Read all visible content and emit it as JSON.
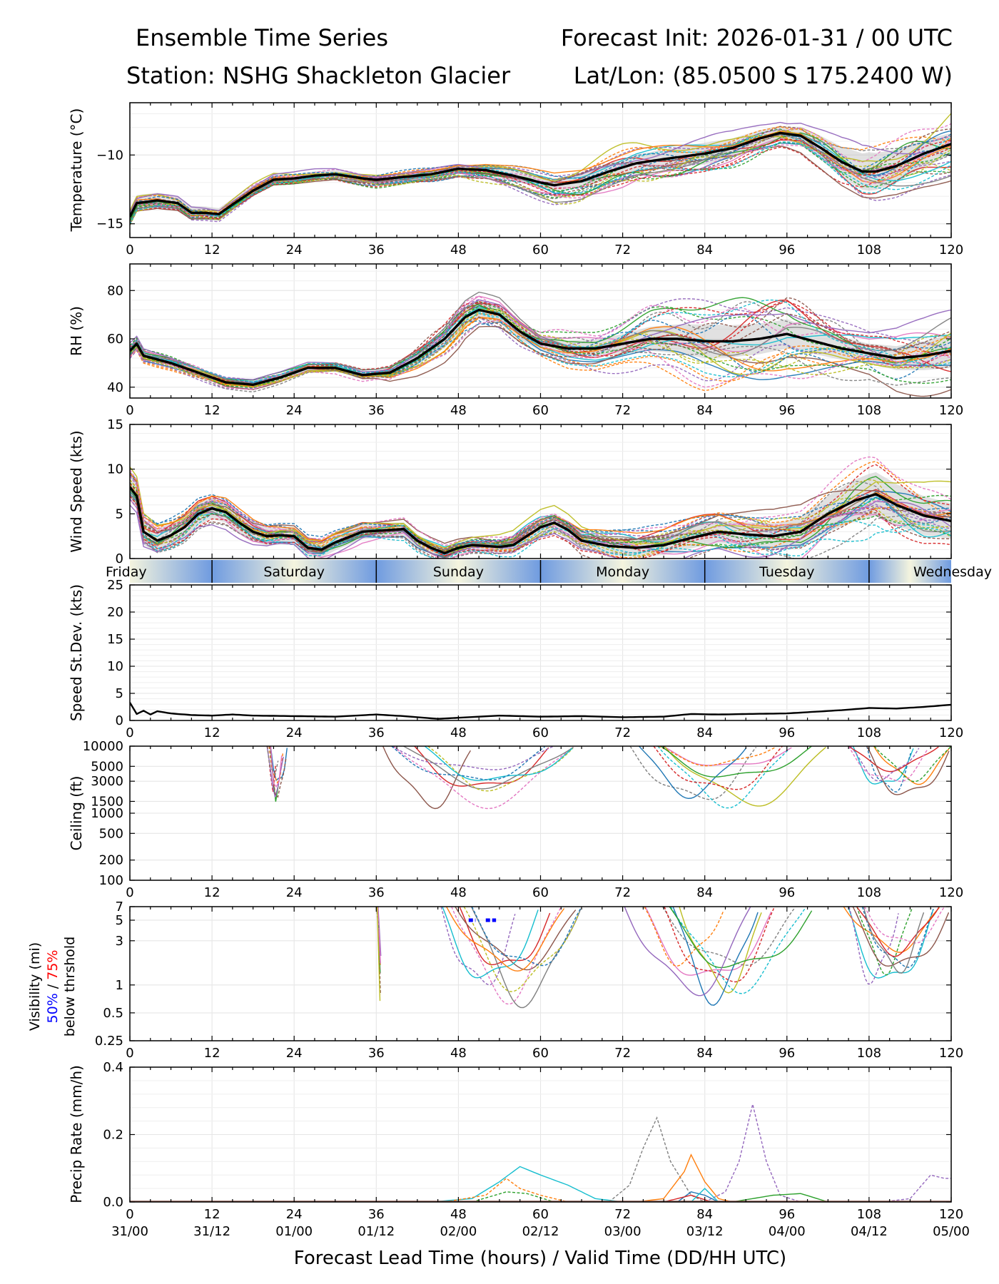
{
  "header": {
    "title_left": "Ensemble Time Series",
    "title_right": "Forecast Init: 2026-01-31 / 00 UTC",
    "station": "Station: NSHG Shackleton Glacier",
    "latlon": "Lat/Lon: (85.0500 S 175.2400 W)"
  },
  "colors": {
    "members": [
      "#1f77b4",
      "#ff7f0e",
      "#2ca02c",
      "#d62728",
      "#9467bd",
      "#8c564b",
      "#e377c2",
      "#7f7f7f",
      "#bcbd22",
      "#17becf"
    ],
    "mean": "#000000",
    "spread": "#c8c8c8",
    "day_blue": "#6f9be0",
    "day_cream": "#f4f4de",
    "vis50": "#0000ff",
    "vis75": "#ff0000"
  },
  "chart_data": [
    {
      "type": "line",
      "id": "temp",
      "ylabel": "Temperature (°C)",
      "ylim": [
        -16,
        -6.2
      ],
      "yticks": [
        -15,
        -10
      ],
      "xlim": [
        0,
        120
      ],
      "mean": [
        [
          0,
          -14.5
        ],
        [
          1,
          -13.5
        ],
        [
          4,
          -13.3
        ],
        [
          7,
          -13.5
        ],
        [
          9,
          -14.2
        ],
        [
          11,
          -14.2
        ],
        [
          13,
          -14.3
        ],
        [
          15,
          -13.6
        ],
        [
          18,
          -12.6
        ],
        [
          21,
          -11.8
        ],
        [
          24,
          -11.7
        ],
        [
          27,
          -11.5
        ],
        [
          30,
          -11.4
        ],
        [
          34,
          -11.7
        ],
        [
          36,
          -11.8
        ],
        [
          40,
          -11.6
        ],
        [
          44,
          -11.4
        ],
        [
          48,
          -11.0
        ],
        [
          52,
          -11.1
        ],
        [
          56,
          -11.5
        ],
        [
          60,
          -12.0
        ],
        [
          62,
          -12.2
        ],
        [
          66,
          -11.9
        ],
        [
          70,
          -11.2
        ],
        [
          74,
          -10.6
        ],
        [
          78,
          -10.3
        ],
        [
          84,
          -9.9
        ],
        [
          88,
          -9.5
        ],
        [
          92,
          -8.8
        ],
        [
          95,
          -8.4
        ],
        [
          98,
          -8.6
        ],
        [
          101,
          -9.5
        ],
        [
          104,
          -10.5
        ],
        [
          107,
          -11.2
        ],
        [
          109,
          -11.2
        ],
        [
          112,
          -10.8
        ],
        [
          116,
          -9.9
        ],
        [
          120,
          -9.2
        ]
      ],
      "spread_half": [
        [
          0,
          0.6
        ],
        [
          24,
          0.3
        ],
        [
          48,
          0.3
        ],
        [
          60,
          0.4
        ],
        [
          72,
          0.6
        ],
        [
          84,
          0.8
        ],
        [
          96,
          0.5
        ],
        [
          108,
          1.4
        ],
        [
          120,
          0.8
        ]
      ],
      "amp": [
        [
          0,
          0.6
        ],
        [
          12,
          0.5
        ],
        [
          24,
          0.4
        ],
        [
          48,
          0.5
        ],
        [
          72,
          1.2
        ],
        [
          96,
          0.8
        ],
        [
          108,
          1.6
        ],
        [
          120,
          1.8
        ]
      ],
      "n_members": 30
    },
    {
      "type": "line",
      "id": "rh",
      "ylabel": "RH (%)",
      "ylim": [
        35.5,
        91
      ],
      "yticks": [
        40,
        60,
        80
      ],
      "xlim": [
        0,
        120
      ],
      "mean": [
        [
          0,
          55
        ],
        [
          1,
          58
        ],
        [
          2,
          53
        ],
        [
          6,
          50
        ],
        [
          10,
          46
        ],
        [
          14,
          42
        ],
        [
          18,
          41
        ],
        [
          22,
          44
        ],
        [
          26,
          48
        ],
        [
          30,
          48
        ],
        [
          34,
          45
        ],
        [
          38,
          46
        ],
        [
          42,
          52
        ],
        [
          46,
          60
        ],
        [
          49,
          69
        ],
        [
          51,
          72
        ],
        [
          54,
          70
        ],
        [
          57,
          63
        ],
        [
          60,
          58
        ],
        [
          64,
          56
        ],
        [
          68,
          56
        ],
        [
          72,
          58
        ],
        [
          76,
          60
        ],
        [
          80,
          60
        ],
        [
          84,
          59
        ],
        [
          88,
          59
        ],
        [
          92,
          60
        ],
        [
          96,
          62
        ],
        [
          100,
          59
        ],
        [
          104,
          56
        ],
        [
          108,
          54
        ],
        [
          112,
          52
        ],
        [
          116,
          53
        ],
        [
          120,
          55
        ]
      ],
      "spread_half": [
        [
          0,
          2
        ],
        [
          24,
          1.5
        ],
        [
          36,
          1.5
        ],
        [
          48,
          4
        ],
        [
          60,
          3
        ],
        [
          72,
          4
        ],
        [
          84,
          7
        ],
        [
          96,
          6
        ],
        [
          108,
          4
        ],
        [
          120,
          7
        ]
      ],
      "amp": [
        [
          0,
          3
        ],
        [
          24,
          2
        ],
        [
          36,
          2
        ],
        [
          48,
          8
        ],
        [
          60,
          5
        ],
        [
          72,
          8
        ],
        [
          84,
          13
        ],
        [
          96,
          13
        ],
        [
          108,
          7
        ],
        [
          120,
          10
        ]
      ],
      "n_members": 30
    },
    {
      "type": "line",
      "id": "wind",
      "ylabel": "Wind Speed (kts)",
      "ylim": [
        0,
        15
      ],
      "yticks": [
        0,
        5,
        10,
        15
      ],
      "xlim": [
        0,
        120
      ],
      "mean": [
        [
          0,
          8
        ],
        [
          1,
          7
        ],
        [
          2,
          3
        ],
        [
          4,
          2
        ],
        [
          6,
          2.6
        ],
        [
          8,
          3.5
        ],
        [
          10,
          5
        ],
        [
          12,
          5.6
        ],
        [
          14,
          5.2
        ],
        [
          16,
          4
        ],
        [
          18,
          3
        ],
        [
          20,
          2.5
        ],
        [
          22,
          2.6
        ],
        [
          24,
          2.5
        ],
        [
          26,
          1.2
        ],
        [
          28,
          1
        ],
        [
          30,
          1.8
        ],
        [
          34,
          3
        ],
        [
          38,
          3.2
        ],
        [
          40,
          3.3
        ],
        [
          42,
          2
        ],
        [
          44,
          1.2
        ],
        [
          46,
          0.6
        ],
        [
          48,
          1.2
        ],
        [
          50,
          1.5
        ],
        [
          54,
          1.3
        ],
        [
          56,
          1.5
        ],
        [
          58,
          2.5
        ],
        [
          60,
          3.5
        ],
        [
          62,
          4
        ],
        [
          64,
          3.2
        ],
        [
          66,
          2
        ],
        [
          70,
          1.4
        ],
        [
          74,
          1.2
        ],
        [
          78,
          1.5
        ],
        [
          82,
          2.3
        ],
        [
          86,
          3
        ],
        [
          90,
          2.7
        ],
        [
          94,
          2.5
        ],
        [
          98,
          3
        ],
        [
          102,
          5
        ],
        [
          106,
          6.5
        ],
        [
          109,
          7.2
        ],
        [
          112,
          6
        ],
        [
          116,
          4.8
        ],
        [
          120,
          4.2
        ]
      ],
      "spread_half": [
        [
          0,
          1.5
        ],
        [
          12,
          1.2
        ],
        [
          24,
          1
        ],
        [
          48,
          0.6
        ],
        [
          60,
          1
        ],
        [
          72,
          1
        ],
        [
          84,
          1.2
        ],
        [
          96,
          1.5
        ],
        [
          108,
          2.5
        ],
        [
          120,
          2
        ]
      ],
      "amp": [
        [
          0,
          2
        ],
        [
          12,
          1.6
        ],
        [
          24,
          1.3
        ],
        [
          48,
          0.9
        ],
        [
          60,
          1.3
        ],
        [
          72,
          1.4
        ],
        [
          84,
          1.8
        ],
        [
          96,
          2
        ],
        [
          108,
          3
        ],
        [
          120,
          2.5
        ]
      ],
      "n_members": 30
    },
    {
      "type": "line",
      "id": "sd",
      "ylabel": "Speed St.Dev. (kts)",
      "ylim": [
        0,
        25
      ],
      "yticks": [
        0,
        5,
        10,
        15,
        20,
        25
      ],
      "xlim": [
        0,
        120
      ],
      "mean": [
        [
          0,
          3.3
        ],
        [
          1,
          1.2
        ],
        [
          2,
          1.8
        ],
        [
          3,
          1.1
        ],
        [
          4,
          1.7
        ],
        [
          6,
          1.3
        ],
        [
          9,
          1.0
        ],
        [
          12,
          0.9
        ],
        [
          15,
          1.1
        ],
        [
          18,
          0.9
        ],
        [
          24,
          0.8
        ],
        [
          30,
          0.7
        ],
        [
          36,
          1.1
        ],
        [
          40,
          0.8
        ],
        [
          45,
          0.3
        ],
        [
          48,
          0.5
        ],
        [
          54,
          0.9
        ],
        [
          60,
          0.7
        ],
        [
          66,
          0.8
        ],
        [
          72,
          0.6
        ],
        [
          78,
          0.7
        ],
        [
          82,
          1.2
        ],
        [
          86,
          1.1
        ],
        [
          90,
          1.2
        ],
        [
          96,
          1.3
        ],
        [
          100,
          1.6
        ],
        [
          104,
          1.9
        ],
        [
          108,
          2.3
        ],
        [
          112,
          2.2
        ],
        [
          116,
          2.5
        ],
        [
          120,
          2.9
        ]
      ]
    },
    {
      "type": "line",
      "id": "ceil",
      "ylabel": "Ceiling (ft)",
      "yscale": "log",
      "ylim": [
        100,
        10000
      ],
      "xlim": [
        0,
        120
      ],
      "ytick_labels": [
        "100",
        "200",
        "500",
        "1000",
        "1500",
        "3000",
        "5000",
        "10000"
      ],
      "yticks": [
        100,
        200,
        500,
        1000,
        1500,
        3000,
        5000,
        10000
      ],
      "member_windows": [
        [
          20,
          23
        ],
        [
          36,
          65
        ],
        [
          70,
          102
        ],
        [
          104,
          120
        ]
      ]
    },
    {
      "type": "line",
      "id": "vis",
      "ylabel": "Visibility (mi)",
      "yscale": "log",
      "ylim": [
        0.25,
        7
      ],
      "xlim": [
        0,
        120
      ],
      "ytick_labels": [
        "0.25",
        "0.5",
        "1",
        "3",
        "5",
        "7"
      ],
      "yticks": [
        0.25,
        0.5,
        1,
        3,
        5,
        7
      ],
      "label_50": "50%",
      "label_sep": " / ",
      "label_75": "75%",
      "label_below": "below thrshold",
      "thresh50_segments": [
        [
          49.5,
          50.5
        ],
        [
          52,
          53.5
        ]
      ],
      "member_windows": [
        [
          36,
          37
        ],
        [
          44,
          66
        ],
        [
          72,
          100
        ],
        [
          102,
          120
        ]
      ]
    },
    {
      "type": "line",
      "id": "precip",
      "ylabel": "Precip Rate (mm/h)",
      "ylim": [
        0,
        0.4
      ],
      "yticks": [
        0.0,
        0.2,
        0.4
      ],
      "ytick_labels": [
        "0.0",
        "0.2",
        "0.4"
      ],
      "xlim": [
        0,
        120
      ],
      "peaks": [
        {
          "c": 9,
          "dash": false,
          "pts": [
            [
              44,
              0
            ],
            [
              50,
              0.01
            ],
            [
              54,
              0.06
            ],
            [
              57,
              0.105
            ],
            [
              60,
              0.08
            ],
            [
              64,
              0.05
            ],
            [
              68,
              0.01
            ],
            [
              72,
              0
            ]
          ]
        },
        {
          "c": 1,
          "dash": true,
          "pts": [
            [
              46,
              0
            ],
            [
              52,
              0.02
            ],
            [
              55,
              0.07
            ],
            [
              57,
              0.04
            ],
            [
              60,
              0.02
            ],
            [
              64,
              0
            ]
          ]
        },
        {
          "c": 7,
          "dash": true,
          "pts": [
            [
              70,
              0
            ],
            [
              73,
              0.05
            ],
            [
              75,
              0.16
            ],
            [
              77,
              0.25
            ],
            [
              79,
              0.12
            ],
            [
              82,
              0.02
            ],
            [
              84,
              0
            ]
          ]
        },
        {
          "c": 1,
          "dash": false,
          "pts": [
            [
              74,
              0
            ],
            [
              78,
              0.01
            ],
            [
              81,
              0.09
            ],
            [
              82,
              0.14
            ],
            [
              84,
              0.06
            ],
            [
              86,
              0.01
            ],
            [
              88,
              0
            ]
          ]
        },
        {
          "c": 4,
          "dash": true,
          "pts": [
            [
              84,
              0
            ],
            [
              87,
              0.03
            ],
            [
              89,
              0.12
            ],
            [
              91,
              0.29
            ],
            [
              93,
              0.12
            ],
            [
              95,
              0.02
            ],
            [
              98,
              0
            ]
          ]
        },
        {
          "c": 4,
          "dash": true,
          "pts": [
            [
              110,
              0
            ],
            [
              114,
              0.01
            ],
            [
              117,
              0.08
            ],
            [
              119,
              0.07
            ],
            [
              120,
              0.07
            ]
          ]
        },
        {
          "c": 0,
          "dash": false,
          "pts": [
            [
              80,
              0
            ],
            [
              82,
              0.03
            ],
            [
              84,
              0.02
            ],
            [
              86,
              0
            ]
          ]
        },
        {
          "c": 2,
          "dash": false,
          "pts": [
            [
              88,
              0
            ],
            [
              94,
              0.02
            ],
            [
              98,
              0.025
            ],
            [
              102,
              0
            ]
          ]
        },
        {
          "c": 3,
          "dash": false,
          "pts": [
            [
              78,
              0
            ],
            [
              82,
              0.02
            ],
            [
              85,
              0
            ]
          ]
        },
        {
          "c": 2,
          "dash": true,
          "pts": [
            [
              50,
              0
            ],
            [
              55,
              0.03
            ],
            [
              58,
              0.025
            ],
            [
              62,
              0
            ]
          ]
        },
        {
          "c": 9,
          "dash": false,
          "pts": [
            [
              82,
              0
            ],
            [
              84,
              0.04
            ],
            [
              86,
              0
            ]
          ]
        }
      ]
    }
  ],
  "xaxis": {
    "ticks": [
      0,
      12,
      24,
      36,
      48,
      60,
      72,
      84,
      96,
      108,
      120
    ],
    "tick_labels": [
      "0",
      "12",
      "24",
      "36",
      "48",
      "60",
      "72",
      "84",
      "96",
      "108",
      "120"
    ],
    "valid_labels": [
      "31/00",
      "31/12",
      "01/00",
      "01/12",
      "02/00",
      "02/12",
      "03/00",
      "03/12",
      "04/00",
      "04/12",
      "05/00"
    ],
    "label": "Forecast Lead Time (hours) / Valid Time (DD/HH UTC)"
  },
  "days": {
    "labels": [
      "Friday",
      "Saturday",
      "Sunday",
      "Monday",
      "Tuesday",
      "Wednesday"
    ],
    "dividers": [
      12,
      36,
      60,
      84,
      108
    ]
  }
}
